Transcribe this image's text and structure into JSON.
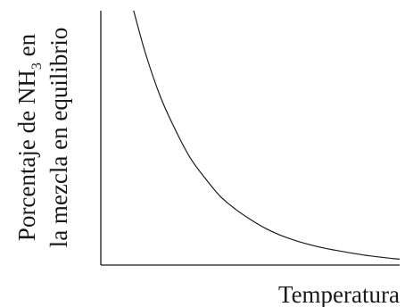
{
  "chart_data": {
    "type": "line",
    "title": "",
    "xlabel": "Temperatura",
    "ylabel_lines": [
      {
        "prefix": "Porcentaje de NH",
        "subscript": "3",
        "suffix": " en"
      },
      {
        "text": "la mezcla en equilibrio"
      }
    ],
    "x_ticks": [],
    "y_ticks": [],
    "grid": false,
    "legend": "none",
    "xlim": [
      0,
      1
    ],
    "ylim": [
      0,
      1
    ],
    "series": [
      {
        "x": [
          0.11,
          0.15,
          0.2,
          0.25,
          0.3,
          0.35,
          0.4,
          0.45,
          0.5,
          0.55,
          0.6,
          0.65,
          0.7,
          0.75,
          0.8,
          0.85,
          0.9,
          0.95,
          1.0
        ],
        "values": [
          1.0,
          0.83,
          0.66,
          0.53,
          0.42,
          0.34,
          0.27,
          0.22,
          0.18,
          0.145,
          0.118,
          0.097,
          0.08,
          0.066,
          0.055,
          0.045,
          0.036,
          0.029,
          0.023
        ]
      }
    ],
    "line_color": "#1a1a1a"
  }
}
